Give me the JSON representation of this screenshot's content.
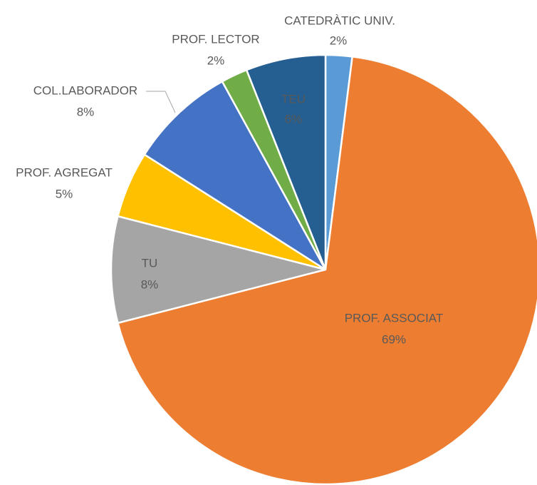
{
  "chart_data": {
    "type": "pie",
    "categories": [
      "CATEDRÀTIC UNIV.",
      "PROF. ASSOCIAT",
      "TU",
      "PROF. AGREGAT",
      "COL.LABORADOR",
      "PROF. LECTOR",
      "TEU"
    ],
    "values": [
      2,
      69,
      8,
      5,
      8,
      2,
      6
    ],
    "value_labels": [
      "2%",
      "69%",
      "8%",
      "5%",
      "8%",
      "2%",
      "6%"
    ],
    "colors": [
      "#5b9bd5",
      "#ed7d31",
      "#a5a5a5",
      "#ffc000",
      "#4472c4",
      "#70ad47",
      "#255e91"
    ]
  }
}
